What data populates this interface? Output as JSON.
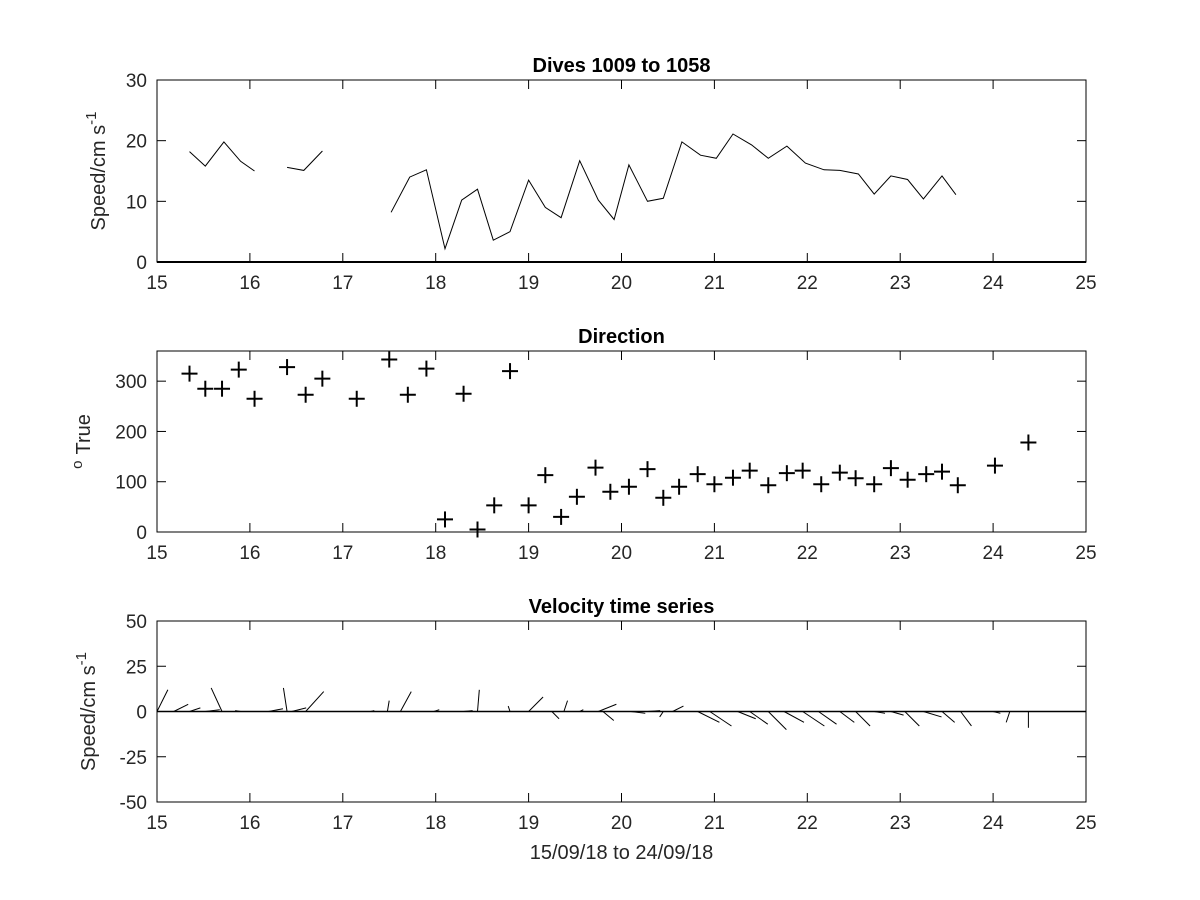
{
  "chart_data": [
    {
      "type": "line",
      "title": "Dives 1009 to 1058",
      "ylabel": "Speed/cm s",
      "ylabel_sup": "-1",
      "xlim": [
        15,
        25
      ],
      "ylim": [
        0,
        30
      ],
      "xticks": [
        "15",
        "16",
        "17",
        "18",
        "19",
        "20",
        "21",
        "22",
        "23",
        "24",
        "25"
      ],
      "yticks": [
        "0",
        "10",
        "20",
        "30"
      ],
      "series": [
        {
          "segments": [
            [
              [
                15.35,
                18.2
              ],
              [
                15.52,
                15.8
              ],
              [
                15.72,
                19.8
              ],
              [
                15.9,
                16.6
              ],
              [
                16.05,
                15.0
              ]
            ],
            [
              [
                16.4,
                15.6
              ],
              [
                16.58,
                15.1
              ],
              [
                16.78,
                18.3
              ]
            ],
            [
              [
                17.52,
                8.2
              ],
              [
                17.72,
                14.0
              ],
              [
                17.9,
                15.2
              ],
              [
                18.1,
                2.2
              ],
              [
                18.28,
                10.2
              ],
              [
                18.45,
                12.0
              ],
              [
                18.62,
                3.6
              ],
              [
                18.8,
                5.0
              ],
              [
                19.0,
                13.5
              ],
              [
                19.18,
                9.0
              ],
              [
                19.35,
                7.3
              ],
              [
                19.55,
                16.7
              ],
              [
                19.75,
                10.2
              ],
              [
                19.92,
                7.0
              ],
              [
                20.08,
                16.0
              ],
              [
                20.28,
                10.0
              ],
              [
                20.45,
                10.5
              ],
              [
                20.65,
                19.8
              ],
              [
                20.85,
                17.6
              ],
              [
                21.02,
                17.1
              ],
              [
                21.2,
                21.1
              ],
              [
                21.4,
                19.3
              ],
              [
                21.58,
                17.1
              ],
              [
                21.78,
                19.1
              ],
              [
                21.98,
                16.3
              ],
              [
                22.18,
                15.2
              ],
              [
                22.35,
                15.1
              ],
              [
                22.55,
                14.5
              ],
              [
                22.72,
                11.2
              ],
              [
                22.9,
                14.2
              ],
              [
                23.08,
                13.6
              ],
              [
                23.25,
                10.4
              ],
              [
                23.45,
                14.2
              ],
              [
                23.6,
                11.1
              ]
            ]
          ]
        }
      ]
    },
    {
      "type": "scatter",
      "title": "Direction",
      "ylabel": "True",
      "ylabel_sup": "o",
      "xlim": [
        15,
        25
      ],
      "ylim": [
        0,
        360
      ],
      "xticks": [
        "15",
        "16",
        "17",
        "18",
        "19",
        "20",
        "21",
        "22",
        "23",
        "24",
        "25"
      ],
      "yticks": [
        "0",
        "100",
        "200",
        "300"
      ],
      "marker": "+",
      "points": [
        [
          15.35,
          315
        ],
        [
          15.52,
          285
        ],
        [
          15.7,
          285
        ],
        [
          15.88,
          323
        ],
        [
          16.05,
          265
        ],
        [
          16.4,
          328
        ],
        [
          16.6,
          273
        ],
        [
          16.78,
          305
        ],
        [
          17.15,
          265
        ],
        [
          17.5,
          343
        ],
        [
          17.7,
          273
        ],
        [
          17.9,
          325
        ],
        [
          18.1,
          25
        ],
        [
          18.3,
          275
        ],
        [
          18.45,
          5
        ],
        [
          18.63,
          53
        ],
        [
          18.8,
          320
        ],
        [
          19.0,
          53
        ],
        [
          19.18,
          113
        ],
        [
          19.35,
          30
        ],
        [
          19.52,
          70
        ],
        [
          19.72,
          128
        ],
        [
          19.88,
          80
        ],
        [
          20.08,
          90
        ],
        [
          20.28,
          125
        ],
        [
          20.45,
          68
        ],
        [
          20.62,
          90
        ],
        [
          20.82,
          115
        ],
        [
          21.0,
          95
        ],
        [
          21.2,
          108
        ],
        [
          21.38,
          122
        ],
        [
          21.58,
          93
        ],
        [
          21.78,
          117
        ],
        [
          21.95,
          122
        ],
        [
          22.15,
          95
        ],
        [
          22.35,
          118
        ],
        [
          22.52,
          107
        ],
        [
          22.72,
          95
        ],
        [
          22.9,
          127
        ],
        [
          23.08,
          104
        ],
        [
          23.28,
          115
        ],
        [
          23.45,
          120
        ],
        [
          23.62,
          93
        ],
        [
          24.02,
          132
        ],
        [
          24.38,
          178
        ]
      ]
    },
    {
      "type": "quiver",
      "title": "Velocity time series",
      "ylabel": "Speed/cm s",
      "ylabel_sup": "-1",
      "xlabel": "15/09/18 to 24/09/18",
      "xlim": [
        15,
        25
      ],
      "ylim": [
        -50,
        50
      ],
      "xticks": [
        "15",
        "16",
        "17",
        "18",
        "19",
        "20",
        "21",
        "22",
        "23",
        "24",
        "25"
      ],
      "yticks": [
        "-50",
        "-25",
        "0",
        "25",
        "50"
      ],
      "vectors": [
        [
          15.0,
          6.0,
          12.0
        ],
        [
          15.18,
          8.0,
          4.0
        ],
        [
          15.35,
          6.0,
          2.0
        ],
        [
          15.52,
          8.0,
          1.0
        ],
        [
          15.7,
          -6.0,
          13.0
        ],
        [
          15.9,
          -3.0,
          0.5
        ],
        [
          16.2,
          8.0,
          1.5
        ],
        [
          16.4,
          -2.0,
          13.0
        ],
        [
          16.45,
          8.0,
          2.0
        ],
        [
          16.6,
          10.0,
          11.0
        ],
        [
          17.3,
          2.0,
          0.5
        ],
        [
          17.48,
          1.0,
          6.0
        ],
        [
          17.62,
          6.0,
          11.0
        ],
        [
          17.98,
          3.0,
          1.0
        ],
        [
          18.3,
          5.0,
          0.5
        ],
        [
          18.45,
          1.0,
          12.0
        ],
        [
          18.8,
          -1.0,
          3.0
        ],
        [
          19.0,
          8.0,
          8.0
        ],
        [
          19.25,
          4.0,
          -4.0
        ],
        [
          19.38,
          2.0,
          6.0
        ],
        [
          19.55,
          2.0,
          1.0
        ],
        [
          19.75,
          10.0,
          4.0
        ],
        [
          19.8,
          6.0,
          -5.0
        ],
        [
          20.1,
          8.0,
          -1.0
        ],
        [
          20.28,
          7.0,
          0.5
        ],
        [
          20.45,
          -2.0,
          -3.0
        ],
        [
          20.55,
          6.0,
          3.0
        ],
        [
          20.82,
          12.0,
          -6.0
        ],
        [
          20.95,
          12.0,
          -8.0
        ],
        [
          21.25,
          10.0,
          -4.0
        ],
        [
          21.38,
          10.0,
          -7.0
        ],
        [
          21.58,
          10.0,
          -10.0
        ],
        [
          21.75,
          11.0,
          -6.0
        ],
        [
          21.95,
          12.0,
          -8.0
        ],
        [
          22.12,
          10.0,
          -7.0
        ],
        [
          22.35,
          8.0,
          -6.0
        ],
        [
          22.52,
          8.0,
          -8.0
        ],
        [
          22.72,
          6.0,
          -1.0
        ],
        [
          22.9,
          7.0,
          -2.0
        ],
        [
          23.05,
          8.0,
          -8.0
        ],
        [
          23.25,
          10.0,
          -3.0
        ],
        [
          23.45,
          7.0,
          -6.0
        ],
        [
          23.65,
          6.0,
          -8.0
        ],
        [
          23.82,
          4.0,
          0.0
        ],
        [
          24.0,
          4.0,
          -1.0
        ],
        [
          24.18,
          -2.0,
          -6.0
        ],
        [
          24.38,
          0.0,
          -9.0
        ]
      ]
    }
  ]
}
